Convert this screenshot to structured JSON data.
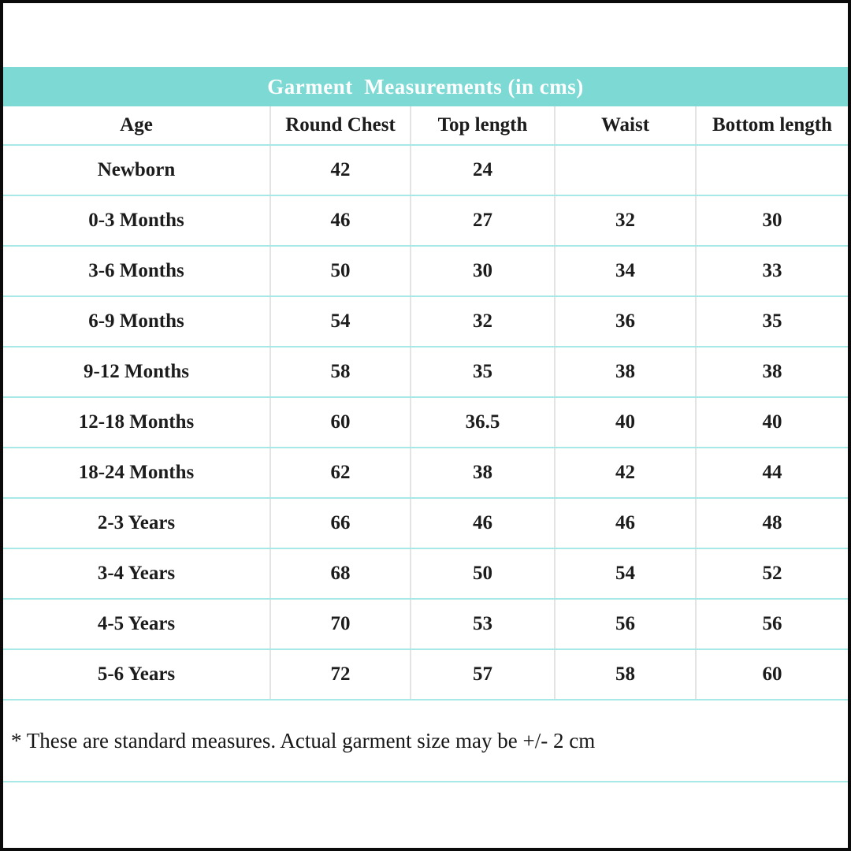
{
  "title": "Garment  Measurements (in cms)",
  "table": {
    "columns": [
      "Age",
      "Round Chest",
      "Top length",
      "Waist",
      "Bottom length"
    ],
    "rows": [
      [
        "Newborn",
        "42",
        "24",
        "",
        ""
      ],
      [
        "0-3 Months",
        "46",
        "27",
        "32",
        "30"
      ],
      [
        "3-6 Months",
        "50",
        "30",
        "34",
        "33"
      ],
      [
        "6-9 Months",
        "54",
        "32",
        "36",
        "35"
      ],
      [
        "9-12 Months",
        "58",
        "35",
        "38",
        "38"
      ],
      [
        "12-18 Months",
        "60",
        "36.5",
        "40",
        "40"
      ],
      [
        "18-24 Months",
        "62",
        "38",
        "42",
        "44"
      ],
      [
        "2-3 Years",
        "66",
        "46",
        "46",
        "48"
      ],
      [
        "3-4 Years",
        "68",
        "50",
        "54",
        "52"
      ],
      [
        "4-5 Years",
        "70",
        "53",
        "56",
        "56"
      ],
      [
        "5-6 Years",
        "72",
        "57",
        "58",
        "60"
      ]
    ]
  },
  "footnote": "* These are standard measures. Actual garment size may be +/- 2 cm",
  "colors": {
    "header_band": "#7cd9d4",
    "row_separator_line": "#a6e8e6",
    "column_separator_line": "#e3e3e3",
    "frame_border": "#0b0b0b",
    "title_text": "#ffffff",
    "body_text": "#1c1c1c"
  }
}
